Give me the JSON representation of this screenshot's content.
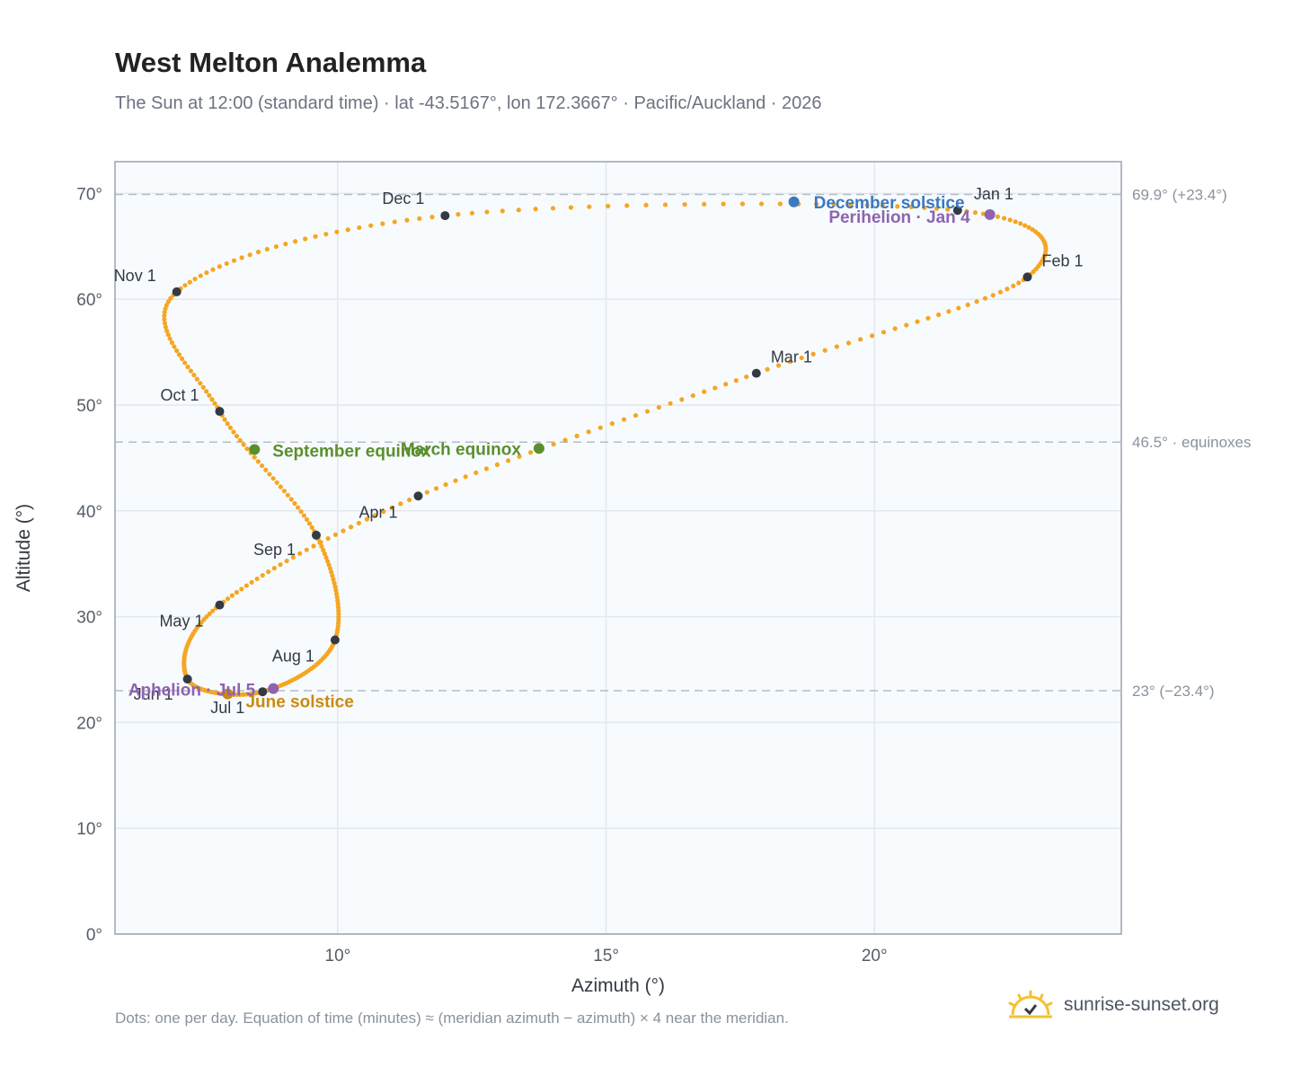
{
  "header": {
    "title": "West Melton Analemma",
    "subtitle": "The Sun at 12:00 (standard time) · lat -43.5167°, lon 172.3667° · Pacific/Auckland · 2026"
  },
  "footer": {
    "note": "Dots: one per day. Equation of time (minutes) ≈ (meridian azimuth − azimuth) × 4 near the meridian.",
    "brand": "sunrise-sunset.org"
  },
  "colors": {
    "curve": "#f5a623",
    "month_marker": "#333a44",
    "equinox": "#5a8f2e",
    "june_solstice": "#c98a12",
    "december_solstice": "#3a78c2",
    "apsis": "#8e63b0",
    "plot_bg": "#f8fbfd",
    "grid": "#e3e8ee",
    "frame": "#9aa3ae",
    "reference_line": "#b4bcc6"
  },
  "chart_data": {
    "type": "scatter",
    "xlabel": "Azimuth (°)",
    "ylabel": "Altitude (°)",
    "xlim": [
      5.85,
      24.6
    ],
    "ylim": [
      0,
      73
    ],
    "x_ticks": [
      10,
      15,
      20
    ],
    "x_tick_labels": [
      "10°",
      "15°",
      "20°"
    ],
    "y_ticks": [
      0,
      10,
      20,
      30,
      40,
      50,
      60,
      70
    ],
    "y_tick_labels": [
      "0°",
      "10°",
      "20°",
      "30°",
      "40°",
      "50°",
      "60°",
      "70°"
    ],
    "grid": true,
    "reference_lines": [
      {
        "y": 69.9,
        "label": "69.9° (+23.4°)"
      },
      {
        "y": 46.5,
        "label": "46.5° · equinoxes"
      },
      {
        "y": 23.0,
        "label": "23° (−23.4°)"
      }
    ],
    "month_markers": [
      {
        "label": "Jan 1",
        "x": 21.55,
        "y": 68.4
      },
      {
        "label": "Feb 1",
        "x": 22.85,
        "y": 62.1
      },
      {
        "label": "Mar 1",
        "x": 17.8,
        "y": 53.0
      },
      {
        "label": "Apr 1",
        "x": 11.5,
        "y": 41.4
      },
      {
        "label": "May 1",
        "x": 7.8,
        "y": 31.1
      },
      {
        "label": "Jun 1",
        "x": 7.2,
        "y": 24.1
      },
      {
        "label": "Jul 1",
        "x": 8.6,
        "y": 22.9
      },
      {
        "label": "Aug 1",
        "x": 9.95,
        "y": 27.8
      },
      {
        "label": "Sep 1",
        "x": 9.6,
        "y": 37.7
      },
      {
        "label": "Oct 1",
        "x": 7.8,
        "y": 49.4
      },
      {
        "label": "Nov 1",
        "x": 7.0,
        "y": 60.7
      },
      {
        "label": "Dec 1",
        "x": 12.0,
        "y": 67.9
      }
    ],
    "events": [
      {
        "label": "December solstice",
        "x": 18.5,
        "y": 69.2,
        "kind": "december_solstice"
      },
      {
        "label": "Perihelion · Jan 4",
        "x": 22.15,
        "y": 68.0,
        "kind": "apsis"
      },
      {
        "label": "March equinox",
        "x": 13.75,
        "y": 45.9,
        "kind": "equinox"
      },
      {
        "label": "September equinox",
        "x": 8.45,
        "y": 45.8,
        "kind": "equinox"
      },
      {
        "label": "June solstice",
        "x": 7.95,
        "y": 22.7,
        "kind": "june_solstice"
      },
      {
        "label": "Aphelion · Jul 5",
        "x": 8.8,
        "y": 23.2,
        "kind": "apsis"
      }
    ]
  }
}
